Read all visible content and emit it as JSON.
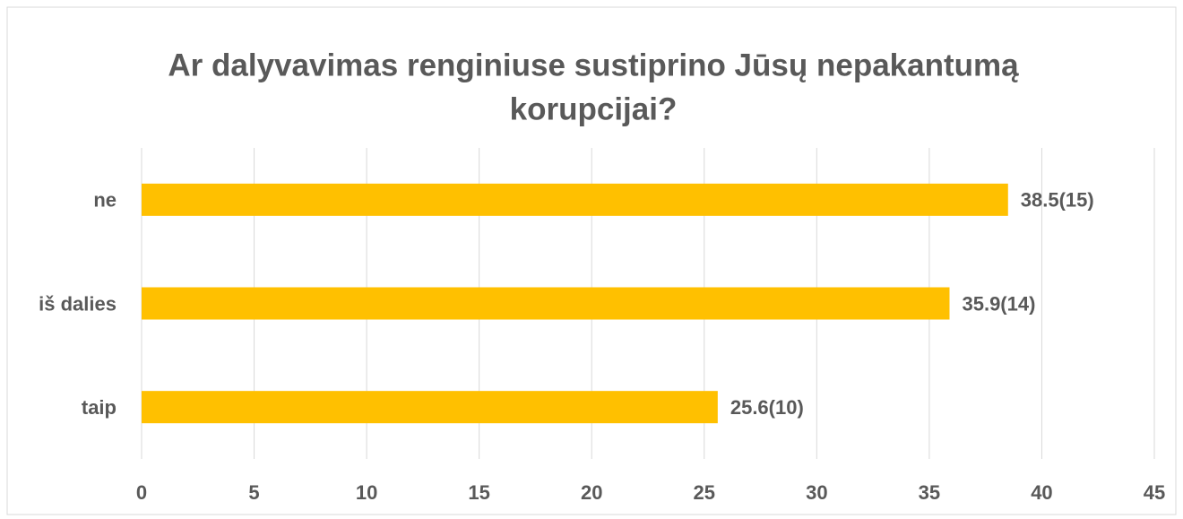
{
  "chart_data": {
    "type": "hbar",
    "title": [
      "Ar dalyvavimas renginiuse sustiprino Jūsų nepakantumą",
      "korupcijai?"
    ],
    "categories": [
      "ne",
      "iš dalies",
      "taip"
    ],
    "values": [
      38.5,
      35.9,
      25.6
    ],
    "value_labels": [
      "38.5(15)",
      "35.9(14)",
      "25.6(10)"
    ],
    "color": "#ffc000",
    "xlim": [
      0,
      45
    ],
    "xticks": [
      0,
      5,
      10,
      15,
      20,
      25,
      30,
      35,
      40,
      45
    ],
    "grid": true
  }
}
